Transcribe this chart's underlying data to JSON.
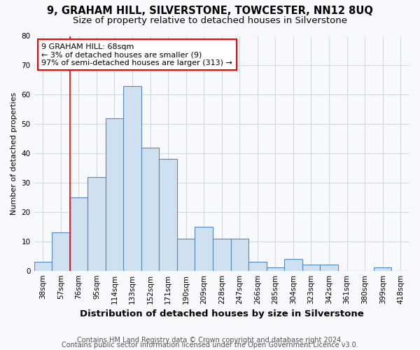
{
  "title1": "9, GRAHAM HILL, SILVERSTONE, TOWCESTER, NN12 8UQ",
  "title2": "Size of property relative to detached houses in Silverstone",
  "xlabel": "Distribution of detached houses by size in Silverstone",
  "ylabel": "Number of detached properties",
  "bins": [
    "38sqm",
    "57sqm",
    "76sqm",
    "95sqm",
    "114sqm",
    "133sqm",
    "152sqm",
    "171sqm",
    "190sqm",
    "209sqm",
    "228sqm",
    "247sqm",
    "266sqm",
    "285sqm",
    "304sqm",
    "323sqm",
    "342sqm",
    "361sqm",
    "380sqm",
    "399sqm",
    "418sqm"
  ],
  "values": [
    3,
    13,
    25,
    32,
    52,
    63,
    42,
    38,
    11,
    15,
    11,
    11,
    3,
    1,
    4,
    2,
    2,
    0,
    0,
    1,
    0
  ],
  "bar_color": "#cfe0f0",
  "bar_edge_color": "#5588bb",
  "red_line_x": 1.5,
  "annotation_text": "9 GRAHAM HILL: 68sqm\n← 3% of detached houses are smaller (9)\n97% of semi-detached houses are larger (313) →",
  "annotation_box_color": "white",
  "annotation_box_edge_color": "red",
  "ylim": [
    0,
    80
  ],
  "yticks": [
    0,
    10,
    20,
    30,
    40,
    50,
    60,
    70,
    80
  ],
  "footer1": "Contains HM Land Registry data © Crown copyright and database right 2024.",
  "footer2": "Contains public sector information licensed under the Open Government Licence v3.0.",
  "background_color": "#f7f9fc",
  "plot_bg_color": "#f7f9fc",
  "grid_color": "#d0d8e0",
  "title1_fontsize": 10.5,
  "title2_fontsize": 9.5,
  "xlabel_fontsize": 9.5,
  "ylabel_fontsize": 8,
  "footer_fontsize": 7,
  "tick_fontsize": 7.5,
  "annot_fontsize": 8
}
